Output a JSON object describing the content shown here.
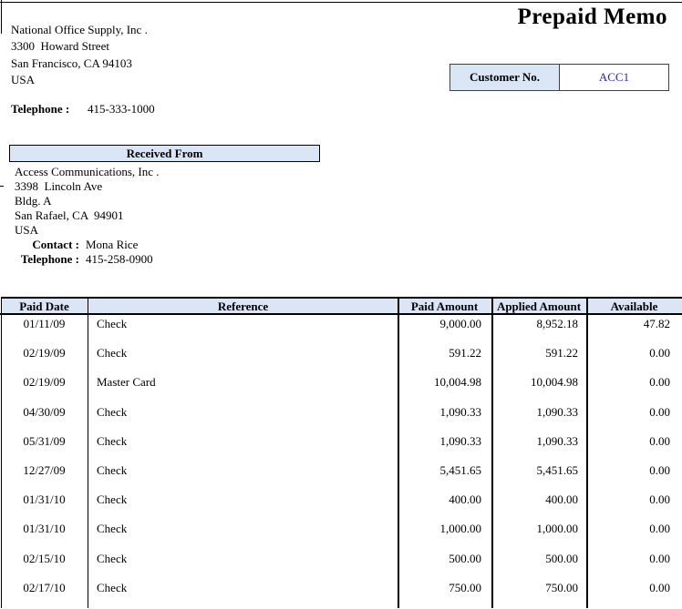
{
  "page": {
    "title": "Prepaid Memo"
  },
  "company": {
    "name": "National Office Supply, Inc .",
    "address1": "3300  Howard Street",
    "address2": "San Francisco, CA 94103",
    "country": "USA",
    "telephone_label": "Telephone :",
    "telephone": "415-333-1000"
  },
  "customer_box": {
    "label": "Customer No.",
    "value": "ACC1"
  },
  "received_from": {
    "header": "Received From",
    "name": "Access Communications, Inc .",
    "address1": "3398  Lincoln Ave",
    "address2": "Bldg. A",
    "address3": "San Rafael, CA  94901",
    "country": "USA",
    "contact_label": "Contact :",
    "contact": "Mona Rice",
    "telephone_label": "Telephone :",
    "telephone": "415-258-0900"
  },
  "table": {
    "columns": [
      "Paid Date",
      "Reference",
      "Paid Amount",
      "Applied Amount",
      "Available"
    ],
    "rows": [
      {
        "paid_date": "01/11/09",
        "reference": "Check",
        "paid_amount": "9,000.00",
        "applied_amount": "8,952.18",
        "available": "47.82"
      },
      {
        "paid_date": "02/19/09",
        "reference": "Check",
        "paid_amount": "591.22",
        "applied_amount": "591.22",
        "available": "0.00"
      },
      {
        "paid_date": "02/19/09",
        "reference": "Master Card",
        "paid_amount": "10,004.98",
        "applied_amount": "10,004.98",
        "available": "0.00"
      },
      {
        "paid_date": "04/30/09",
        "reference": "Check",
        "paid_amount": "1,090.33",
        "applied_amount": "1,090.33",
        "available": "0.00"
      },
      {
        "paid_date": "05/31/09",
        "reference": "Check",
        "paid_amount": "1,090.33",
        "applied_amount": "1,090.33",
        "available": "0.00"
      },
      {
        "paid_date": "12/27/09",
        "reference": "Check",
        "paid_amount": "5,451.65",
        "applied_amount": "5,451.65",
        "available": "0.00"
      },
      {
        "paid_date": "01/31/10",
        "reference": "Check",
        "paid_amount": "400.00",
        "applied_amount": "400.00",
        "available": "0.00"
      },
      {
        "paid_date": "01/31/10",
        "reference": "Check",
        "paid_amount": "1,000.00",
        "applied_amount": "1,000.00",
        "available": "0.00"
      },
      {
        "paid_date": "02/15/10",
        "reference": "Check",
        "paid_amount": "500.00",
        "applied_amount": "500.00",
        "available": "0.00"
      },
      {
        "paid_date": "02/17/10",
        "reference": "Check",
        "paid_amount": "750.00",
        "applied_amount": "750.00",
        "available": "0.00"
      }
    ]
  },
  "colors": {
    "panel_fill": "#dae5f5",
    "value_blue": "#2424cc",
    "border": "#000000"
  }
}
